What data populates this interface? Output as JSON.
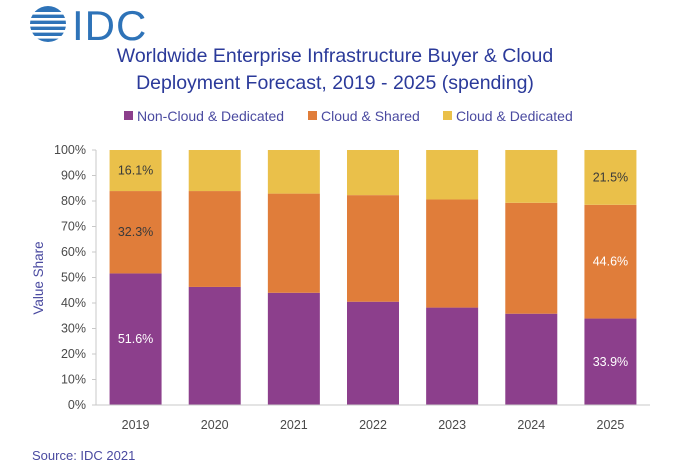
{
  "logo": {
    "text": "IDC",
    "color": "#2e73b8"
  },
  "source": "Source: IDC 2021",
  "colors": {
    "non_cloud": "#8c3f8c",
    "cloud_shared": "#e07d3a",
    "cloud_dedicated": "#eac04a",
    "title": "#2b3a9a",
    "text": "#4a4aa0"
  },
  "chart_data": {
    "type": "bar",
    "stacked": true,
    "title_lines": [
      "Worldwide Enterprise Infrastructure Buyer & Cloud",
      "Deployment Forecast, 2019 - 2025 (spending)"
    ],
    "xlabel": "",
    "ylabel": "Value  Share",
    "ylim": [
      0,
      100
    ],
    "y_ticks": [
      "0%",
      "10%",
      "20%",
      "30%",
      "40%",
      "50%",
      "60%",
      "70%",
      "80%",
      "90%",
      "100%"
    ],
    "grid": false,
    "legend_position": "top",
    "categories": [
      "2019",
      "2020",
      "2021",
      "2022",
      "2023",
      "2024",
      "2025"
    ],
    "series": [
      {
        "name": "Non-Cloud & Dedicated",
        "color": "#8c3f8c",
        "values": [
          51.6,
          46.3,
          44.0,
          40.5,
          38.2,
          35.8,
          33.9
        ]
      },
      {
        "name": "Cloud & Shared",
        "color": "#e07d3a",
        "values": [
          32.3,
          37.6,
          38.9,
          41.8,
          42.4,
          43.5,
          44.6
        ]
      },
      {
        "name": "Cloud & Dedicated",
        "color": "#eac04a",
        "values": [
          16.1,
          16.1,
          17.1,
          17.7,
          19.4,
          20.7,
          21.5
        ]
      }
    ],
    "data_labels": [
      {
        "series": 0,
        "category": 0,
        "text": "51.6%",
        "color": "#ffffff"
      },
      {
        "series": 1,
        "category": 0,
        "text": "32.3%",
        "color": "#3a3a3a"
      },
      {
        "series": 2,
        "category": 0,
        "text": "16.1%",
        "color": "#3a3a3a"
      },
      {
        "series": 0,
        "category": 6,
        "text": "33.9%",
        "color": "#ffffff"
      },
      {
        "series": 1,
        "category": 6,
        "text": "44.6%",
        "color": "#ffffff"
      },
      {
        "series": 2,
        "category": 6,
        "text": "21.5%",
        "color": "#3a3a3a"
      }
    ]
  }
}
